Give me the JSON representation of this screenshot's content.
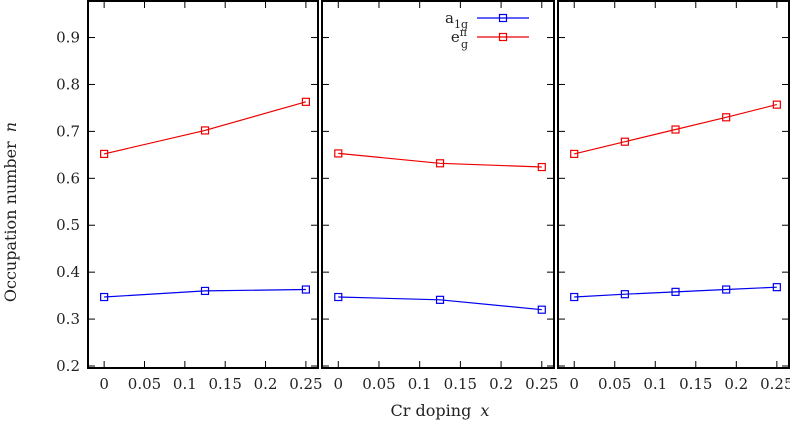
{
  "chart_data": {
    "type": "line",
    "ylabel_text": "Occupation number",
    "ylabel_var": "n",
    "xlabel_text": "Cr doping",
    "xlabel_var": "x",
    "ylim": [
      0.2,
      0.98
    ],
    "xlim": [
      -0.02,
      0.265
    ],
    "yticks": [
      "0.2",
      "0.3",
      "0.4",
      "0.5",
      "0.6",
      "0.7",
      "0.8",
      "0.9"
    ],
    "yticks_values": [
      0.2,
      0.3,
      0.4,
      0.5,
      0.6,
      0.7,
      0.8,
      0.9
    ],
    "xticks": [
      "0",
      "0.05",
      "0.1",
      "0.15",
      "0.2",
      "0.25"
    ],
    "xticks_values": [
      0,
      0.05,
      0.1,
      0.15,
      0.2,
      0.25
    ],
    "legend": {
      "placement": "top-right of middle panel",
      "entries": [
        {
          "base": "a",
          "sub": "1g",
          "sup": "",
          "color": "#0000ee"
        },
        {
          "base": "e",
          "sub": "g",
          "sup": "π",
          "color": "#ee0000"
        }
      ]
    },
    "panels": [
      {
        "series": [
          {
            "color": "#0000ee",
            "x": [
              0,
              0.125,
              0.25
            ],
            "y": [
              0.347,
              0.36,
              0.363
            ]
          },
          {
            "color": "#ee0000",
            "x": [
              0,
              0.125,
              0.25
            ],
            "y": [
              0.652,
              0.702,
              0.763
            ]
          }
        ]
      },
      {
        "series": [
          {
            "color": "#0000ee",
            "x": [
              0,
              0.125,
              0.25
            ],
            "y": [
              0.347,
              0.341,
              0.32
            ]
          },
          {
            "color": "#ee0000",
            "x": [
              0,
              0.125,
              0.25
            ],
            "y": [
              0.653,
              0.632,
              0.624
            ]
          }
        ]
      },
      {
        "series": [
          {
            "color": "#0000ee",
            "x": [
              0,
              0.0625,
              0.125,
              0.1875,
              0.25
            ],
            "y": [
              0.347,
              0.353,
              0.358,
              0.363,
              0.368
            ]
          },
          {
            "color": "#ee0000",
            "x": [
              0,
              0.0625,
              0.125,
              0.1875,
              0.25
            ],
            "y": [
              0.652,
              0.678,
              0.704,
              0.73,
              0.757
            ]
          }
        ]
      }
    ]
  }
}
